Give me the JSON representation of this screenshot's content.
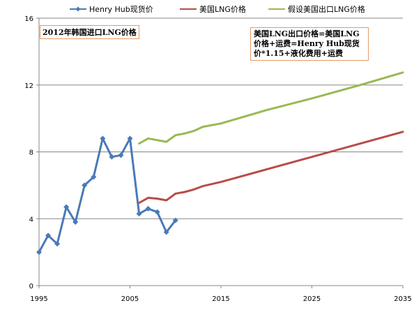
{
  "chart_data": {
    "type": "line",
    "title": "",
    "xlabel": "",
    "ylabel": "",
    "xlim": [
      1995,
      2035
    ],
    "ylim": [
      0,
      16
    ],
    "x_ticks": [
      "1995",
      "2005",
      "2015",
      "2025",
      "2035"
    ],
    "y_ticks": [
      "0",
      "4",
      "8",
      "12",
      "16"
    ],
    "grid": "horizontal",
    "legend_position": "top",
    "series": [
      {
        "name": "Henry Hub现货价",
        "color": "#4a7ab7",
        "marker": "diamond",
        "points": [
          [
            1995,
            2.0
          ],
          [
            1996,
            3.0
          ],
          [
            1997,
            2.5
          ],
          [
            1998,
            4.7
          ],
          [
            1999,
            3.8
          ],
          [
            2000,
            6.0
          ],
          [
            2001,
            6.5
          ],
          [
            2002,
            8.8
          ],
          [
            2003,
            7.7
          ],
          [
            2004,
            7.8
          ],
          [
            2005,
            8.8
          ],
          [
            2006,
            4.3
          ],
          [
            2007,
            4.6
          ],
          [
            2008,
            4.4
          ],
          [
            2009,
            3.2
          ],
          [
            2010,
            3.9
          ]
        ]
      },
      {
        "name": "美国LNG价格",
        "color": "#b84c48",
        "marker": "none",
        "points": [
          [
            2006,
            4.95
          ],
          [
            2007,
            5.25
          ],
          [
            2008,
            5.2
          ],
          [
            2009,
            5.1
          ],
          [
            2010,
            5.5
          ],
          [
            2011,
            5.6
          ],
          [
            2012,
            5.75
          ],
          [
            2013,
            5.95
          ],
          [
            2015,
            6.2
          ],
          [
            2020,
            6.95
          ],
          [
            2025,
            7.7
          ],
          [
            2030,
            8.45
          ],
          [
            2035,
            9.2
          ]
        ]
      },
      {
        "name": "假设美国出口LNG价格",
        "color": "#98b954",
        "marker": "none",
        "points": [
          [
            2006,
            8.5
          ],
          [
            2007,
            8.8
          ],
          [
            2008,
            8.7
          ],
          [
            2009,
            8.6
          ],
          [
            2010,
            9.0
          ],
          [
            2011,
            9.1
          ],
          [
            2012,
            9.25
          ],
          [
            2013,
            9.5
          ],
          [
            2015,
            9.7
          ],
          [
            2020,
            10.5
          ],
          [
            2025,
            11.2
          ],
          [
            2030,
            11.95
          ],
          [
            2035,
            12.75
          ]
        ]
      }
    ],
    "annotations": [
      {
        "text": "2012年韩国进口LNG价格"
      },
      {
        "text": "美国LNG出口价格=美国LNG价格+运费=Henry Hub现货价*1.15+液化费用+运费"
      }
    ]
  }
}
